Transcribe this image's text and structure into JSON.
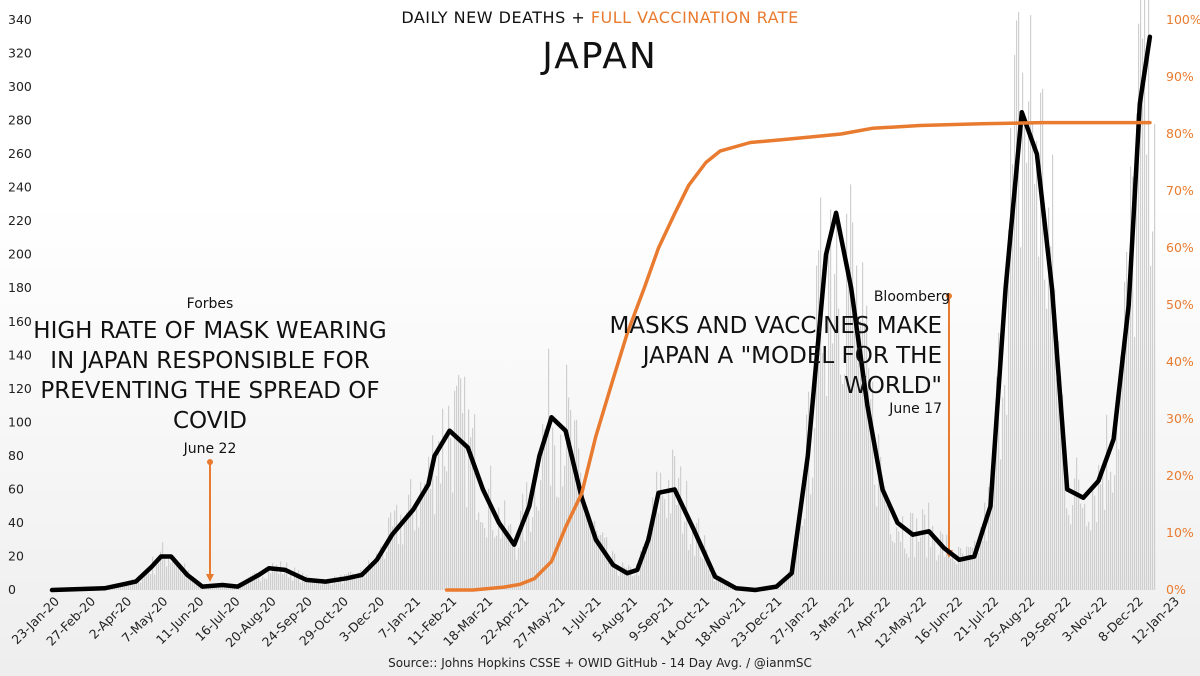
{
  "title": "DAILY NEW DEATHS + ",
  "title_highlight": "FULL VACCINATION RATE",
  "subtitle": "JAPAN",
  "source": "Source:: Johns Hopkins CSSE + OWID GitHub - 14 Day Avg. / @ianmSC",
  "colors": {
    "deaths_line": "#000000",
    "vaccination_line": "#e87b2f",
    "daily_bars": "#cfcfcf",
    "background_bottom": "#eeeeee"
  },
  "annotations": [
    {
      "source": "Forbes",
      "headline": "HIGH RATE OF MASK WEARING IN JAPAN RESPONSIBLE FOR PREVENTING THE SPREAD OF COVID",
      "date": "June 22"
    },
    {
      "source": "Bloomberg",
      "headline": "MASKS AND VACCINES MAKE JAPAN A \"MODEL FOR THE WORLD\"",
      "date": "June 17"
    }
  ],
  "chart_data": {
    "type": "line",
    "title": "DAILY NEW DEATHS + FULL VACCINATION RATE",
    "subtitle": "JAPAN",
    "x_tick_labels": [
      "23-Jan-20",
      "27-Feb-20",
      "2-Apr-20",
      "7-May-20",
      "11-Jun-20",
      "16-Jul-20",
      "20-Aug-20",
      "24-Sep-20",
      "29-Oct-20",
      "3-Dec-20",
      "7-Jan-21",
      "11-Feb-21",
      "18-Mar-21",
      "22-Apr-21",
      "27-May-21",
      "1-Jul-21",
      "5-Aug-21",
      "9-Sep-21",
      "14-Oct-21",
      "18-Nov-21",
      "23-Dec-21",
      "27-Jan-22",
      "3-Mar-22",
      "7-Apr-22",
      "12-May-22",
      "16-Jun-22",
      "21-Jul-22",
      "25-Aug-22",
      "29-Sep-22",
      "3-Nov-22",
      "8-Dec-22",
      "12-Jan-23"
    ],
    "y_left": {
      "ticks": [
        0,
        20,
        40,
        60,
        80,
        100,
        120,
        140,
        160,
        180,
        200,
        220,
        240,
        260,
        280,
        300,
        320,
        340
      ],
      "range": [
        0,
        340
      ]
    },
    "y_right": {
      "ticks": [
        "0%",
        "10%",
        "20%",
        "30%",
        "40%",
        "50%",
        "60%",
        "70%",
        "80%",
        "90%",
        "100%"
      ],
      "range": [
        0,
        100
      ]
    },
    "series": [
      {
        "name": "DAILY NEW DEATHS",
        "axis": "left",
        "style": "line",
        "x": [
          "2020-01-23",
          "2020-03-15",
          "2020-04-15",
          "2020-05-01",
          "2020-05-10",
          "2020-05-20",
          "2020-06-05",
          "2020-06-20",
          "2020-07-10",
          "2020-07-25",
          "2020-08-15",
          "2020-08-25",
          "2020-09-10",
          "2020-10-01",
          "2020-10-20",
          "2020-11-10",
          "2020-11-25",
          "2020-12-10",
          "2020-12-25",
          "2021-01-15",
          "2021-01-30",
          "2021-02-05",
          "2021-02-20",
          "2021-03-10",
          "2021-03-25",
          "2021-04-10",
          "2021-04-25",
          "2021-05-10",
          "2021-05-20",
          "2021-06-01",
          "2021-06-15",
          "2021-07-01",
          "2021-07-15",
          "2021-08-01",
          "2021-08-15",
          "2021-08-25",
          "2021-09-05",
          "2021-09-15",
          "2021-10-01",
          "2021-10-20",
          "2021-11-10",
          "2021-12-01",
          "2021-12-20",
          "2022-01-10",
          "2022-01-25",
          "2022-02-10",
          "2022-02-28",
          "2022-03-10",
          "2022-03-25",
          "2022-04-10",
          "2022-04-25",
          "2022-05-10",
          "2022-05-25",
          "2022-06-10",
          "2022-06-25",
          "2022-07-10",
          "2022-07-25",
          "2022-08-10",
          "2022-08-25",
          "2022-09-10",
          "2022-09-25",
          "2022-10-10",
          "2022-10-25",
          "2022-11-10",
          "2022-11-25",
          "2022-12-10",
          "2022-12-25",
          "2023-01-05",
          "2023-01-15"
        ],
        "y": [
          0,
          1,
          5,
          14,
          20,
          20,
          9,
          2,
          3,
          2,
          9,
          13,
          12,
          6,
          5,
          7,
          9,
          18,
          33,
          48,
          63,
          80,
          95,
          85,
          60,
          40,
          27,
          50,
          80,
          103,
          95,
          55,
          30,
          15,
          10,
          12,
          30,
          58,
          60,
          36,
          8,
          1,
          0,
          2,
          10,
          80,
          200,
          225,
          180,
          110,
          60,
          40,
          33,
          35,
          25,
          18,
          20,
          50,
          180,
          285,
          260,
          180,
          60,
          55,
          65,
          90,
          170,
          290,
          330
        ]
      },
      {
        "name": "FULL VACCINATION RATE",
        "axis": "right",
        "style": "line",
        "x": [
          "2021-02-17",
          "2021-03-15",
          "2021-04-15",
          "2021-05-01",
          "2021-05-15",
          "2021-06-01",
          "2021-06-15",
          "2021-07-01",
          "2021-07-15",
          "2021-08-01",
          "2021-08-15",
          "2021-09-01",
          "2021-09-15",
          "2021-10-01",
          "2021-10-15",
          "2021-11-01",
          "2021-11-15",
          "2021-12-15",
          "2022-01-15",
          "2022-02-15",
          "2022-03-15",
          "2022-04-15",
          "2022-06-01",
          "2022-08-01",
          "2022-10-01",
          "2022-12-01",
          "2023-01-15"
        ],
        "y": [
          0,
          0,
          0.5,
          1,
          2,
          5,
          11,
          17,
          27,
          37,
          45,
          53,
          60,
          66,
          71,
          75,
          77,
          78.5,
          79,
          79.5,
          80,
          81,
          81.5,
          81.8,
          82,
          82,
          82
        ]
      }
    ],
    "grid": false,
    "legend": "none"
  }
}
